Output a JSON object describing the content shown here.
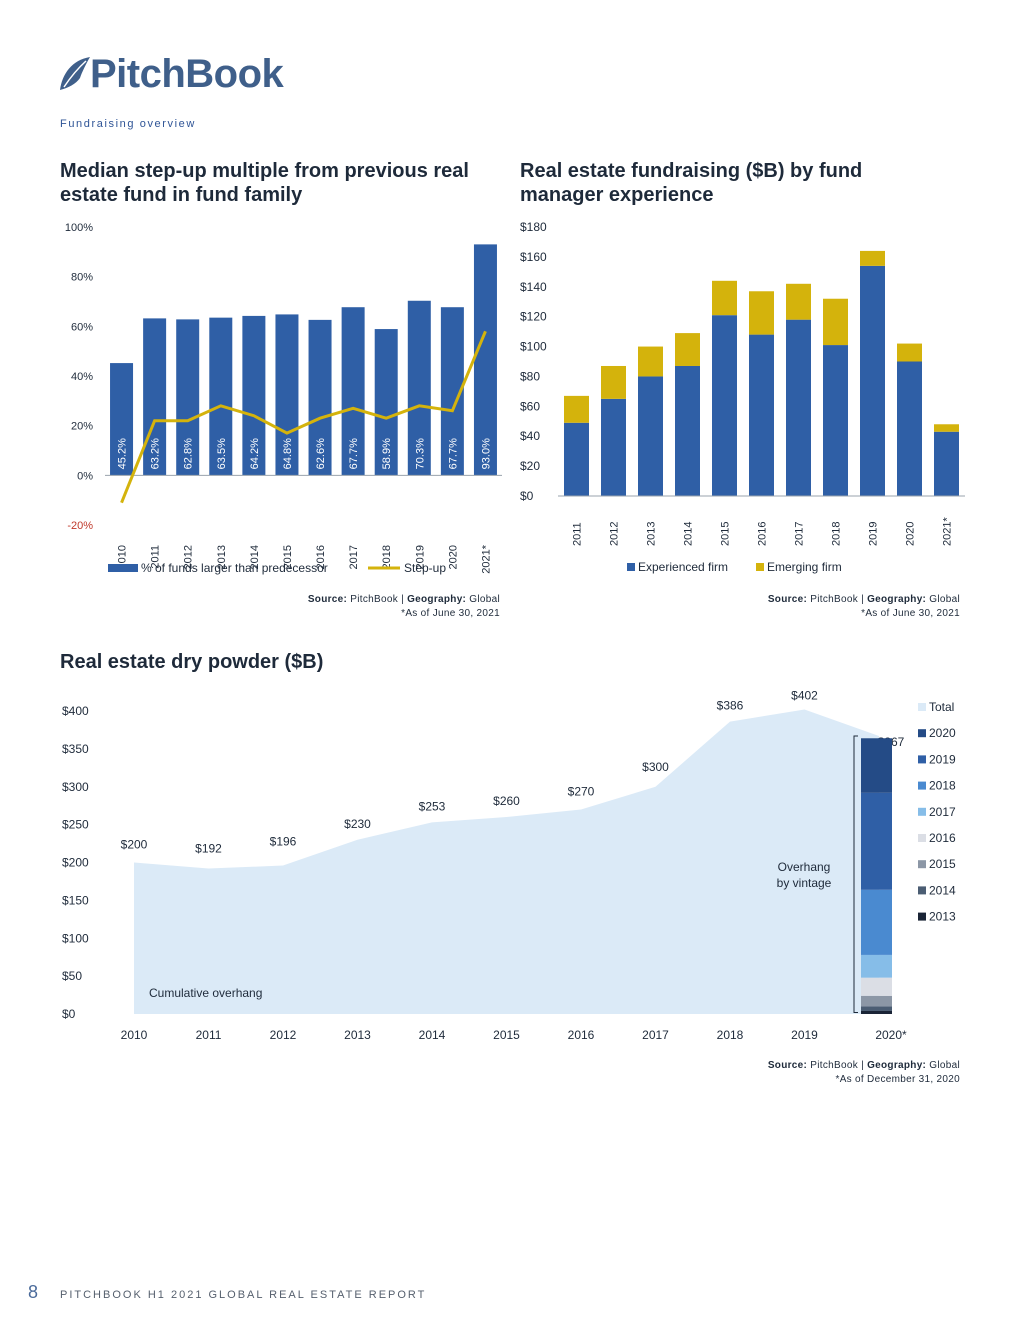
{
  "header": {
    "brand": "PitchBook",
    "section": "Fundraising overview"
  },
  "footer": {
    "page_number": "8",
    "report_title": "PITCHBOOK H1 2021 GLOBAL REAL ESTATE REPORT"
  },
  "colors": {
    "navy_bar": "#2f5fa6",
    "gold": "#d4b30c",
    "area": "#dbeaf7",
    "negative_tick": "#c0392b"
  },
  "chart_data": [
    {
      "type": "bar",
      "title": "Median step-up multiple from previous real estate fund in fund family",
      "categories": [
        "2010",
        "2011",
        "2012",
        "2013",
        "2014",
        "2015",
        "2016",
        "2017",
        "2018",
        "2019",
        "2020",
        "2021*"
      ],
      "series": [
        {
          "name": "% of funds larger than predecessor",
          "kind": "bar",
          "values": [
            45.2,
            63.2,
            62.8,
            63.5,
            64.2,
            64.8,
            62.6,
            67.7,
            58.9,
            70.3,
            67.7,
            93.0
          ],
          "labels": [
            "45.2%",
            "63.2%",
            "62.8%",
            "63.5%",
            "64.2%",
            "64.8%",
            "62.6%",
            "67.7%",
            "58.9%",
            "70.3%",
            "67.7%",
            "93.0%"
          ]
        },
        {
          "name": "Step-up",
          "kind": "line",
          "values": [
            -11,
            22,
            22,
            28,
            24,
            17,
            23,
            27,
            23,
            28,
            26,
            58
          ]
        }
      ],
      "yticks": [
        "100%",
        "80%",
        "60%",
        "40%",
        "20%",
        "0%",
        "-20%"
      ],
      "ylim": [
        -20,
        100
      ],
      "legend": "bottom",
      "source": {
        "source_label": "Source:",
        "source_value": "PitchBook",
        "geo_label": "Geography:",
        "geo_value": "Global",
        "note": "*As of June 30, 2021"
      }
    },
    {
      "type": "bar",
      "stacked": true,
      "title": "Real estate fundraising ($B) by fund manager experience",
      "categories": [
        "2011",
        "2012",
        "2013",
        "2014",
        "2015",
        "2016",
        "2017",
        "2018",
        "2019",
        "2020",
        "2021*"
      ],
      "series": [
        {
          "name": "Experienced firm",
          "values": [
            49,
            65,
            80,
            87,
            121,
            108,
            118,
            101,
            154,
            90,
            43
          ]
        },
        {
          "name": "Emerging firm",
          "values": [
            18,
            22,
            20,
            22,
            23,
            29,
            24,
            31,
            10,
            12,
            5
          ]
        }
      ],
      "yticks": [
        "$180",
        "$160",
        "$140",
        "$120",
        "$100",
        "$80",
        "$60",
        "$40",
        "$20",
        "$0"
      ],
      "ylim": [
        0,
        180
      ],
      "legend": "bottom",
      "source": {
        "source_label": "Source:",
        "source_value": "PitchBook",
        "geo_label": "Geography:",
        "geo_value": "Global",
        "note": "*As of June 30, 2021"
      }
    },
    {
      "type": "area",
      "title": "Real estate dry powder ($B)",
      "x": [
        "2010",
        "2011",
        "2012",
        "2013",
        "2014",
        "2015",
        "2016",
        "2017",
        "2018",
        "2019",
        "2020*"
      ],
      "series": [
        {
          "name": "Total",
          "values": [
            200,
            192,
            196,
            230,
            253,
            260,
            270,
            300,
            386,
            402,
            367
          ],
          "labels": [
            "$200",
            "$192",
            "$196",
            "$230",
            "$253",
            "$260",
            "$270",
            "$300",
            "$386",
            "$402",
            "$367"
          ]
        }
      ],
      "overhang_by_vintage": {
        "name_order": [
          "2013",
          "2014",
          "2015",
          "2016",
          "2017",
          "2018",
          "2019",
          "2020"
        ],
        "values": [
          4,
          6,
          14,
          24,
          30,
          86,
          128,
          72
        ],
        "colors": [
          "#1a2436",
          "#4b5d73",
          "#8c97a6",
          "#dbdee5",
          "#86bde8",
          "#4a8ad0",
          "#2f5fa6",
          "#244b86"
        ]
      },
      "legend_items": [
        "Total",
        "2020",
        "2019",
        "2018",
        "2017",
        "2016",
        "2015",
        "2014",
        "2013"
      ],
      "annotations": {
        "cumulative": "Cumulative overhang",
        "overhang_line1": "Overhang",
        "overhang_line2": "by vintage"
      },
      "yticks": [
        "$400",
        "$350",
        "$300",
        "$250",
        "$200",
        "$150",
        "$100",
        "$50",
        "$0"
      ],
      "ylim": [
        0,
        400
      ],
      "legend": "right",
      "source": {
        "source_label": "Source:",
        "source_value": "PitchBook",
        "geo_label": "Geography:",
        "geo_value": "Global",
        "note": "*As of December 31, 2020"
      }
    }
  ]
}
